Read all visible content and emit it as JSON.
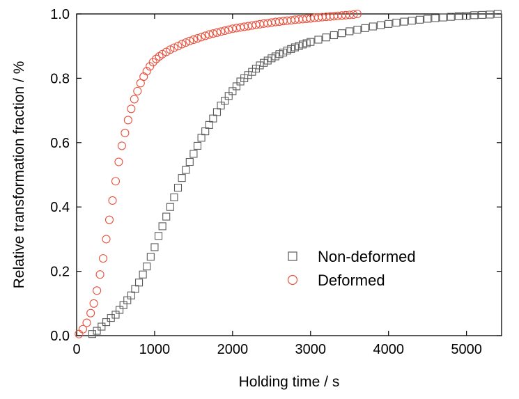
{
  "chart_data": {
    "type": "scatter",
    "xlabel": "Holding time / s",
    "ylabel": "Relative transformation fraction / %",
    "xlim": [
      0,
      5450
    ],
    "ylim": [
      0,
      1.0
    ],
    "xticks": [
      0,
      1000,
      2000,
      3000,
      4000,
      5000
    ],
    "yticks": [
      0.0,
      0.2,
      0.4,
      0.6,
      0.8,
      1.0
    ],
    "xtick_labels": [
      "0",
      "1000",
      "2000",
      "3000",
      "4000",
      "5000"
    ],
    "ytick_labels": [
      "0.0",
      "0.2",
      "0.4",
      "0.6",
      "0.8",
      "1.0"
    ],
    "grid": false,
    "legend_position": "center-right",
    "series": [
      {
        "name": "Non-deformed",
        "marker": "square",
        "color": "#5a5a5a",
        "x": [
          200,
          260,
          320,
          380,
          440,
          500,
          550,
          600,
          650,
          700,
          750,
          800,
          850,
          900,
          950,
          1000,
          1050,
          1100,
          1150,
          1200,
          1250,
          1300,
          1350,
          1400,
          1450,
          1500,
          1550,
          1600,
          1650,
          1700,
          1750,
          1800,
          1850,
          1900,
          1950,
          2000,
          2050,
          2100,
          2150,
          2200,
          2250,
          2300,
          2350,
          2400,
          2450,
          2500,
          2550,
          2600,
          2650,
          2700,
          2750,
          2800,
          2850,
          2900,
          2950,
          3000,
          3100,
          3200,
          3300,
          3400,
          3500,
          3600,
          3700,
          3800,
          3900,
          4000,
          4100,
          4200,
          4300,
          4400,
          4500,
          4600,
          4700,
          4800,
          4900,
          5000,
          5100,
          5200,
          5300,
          5400
        ],
        "y": [
          0.005,
          0.015,
          0.028,
          0.042,
          0.055,
          0.065,
          0.08,
          0.095,
          0.11,
          0.125,
          0.145,
          0.165,
          0.19,
          0.215,
          0.245,
          0.275,
          0.31,
          0.34,
          0.37,
          0.4,
          0.43,
          0.46,
          0.49,
          0.515,
          0.54,
          0.565,
          0.59,
          0.615,
          0.635,
          0.655,
          0.675,
          0.695,
          0.715,
          0.73,
          0.745,
          0.76,
          0.775,
          0.79,
          0.8,
          0.81,
          0.82,
          0.83,
          0.84,
          0.848,
          0.855,
          0.862,
          0.868,
          0.875,
          0.88,
          0.886,
          0.891,
          0.896,
          0.9,
          0.905,
          0.909,
          0.913,
          0.92,
          0.927,
          0.934,
          0.94,
          0.946,
          0.951,
          0.956,
          0.961,
          0.965,
          0.969,
          0.973,
          0.976,
          0.979,
          0.982,
          0.985,
          0.987,
          0.989,
          0.991,
          0.993,
          0.994,
          0.996,
          0.997,
          0.998,
          1.0
        ]
      },
      {
        "name": "Deformed",
        "marker": "circle",
        "color": "#e8503c",
        "x": [
          30,
          80,
          130,
          180,
          220,
          260,
          300,
          340,
          380,
          420,
          460,
          500,
          540,
          580,
          620,
          660,
          700,
          740,
          780,
          820,
          860,
          900,
          940,
          980,
          1020,
          1060,
          1100,
          1150,
          1200,
          1250,
          1300,
          1350,
          1400,
          1450,
          1500,
          1550,
          1600,
          1650,
          1700,
          1750,
          1800,
          1850,
          1900,
          1950,
          2000,
          2050,
          2100,
          2150,
          2200,
          2250,
          2300,
          2350,
          2400,
          2450,
          2500,
          2550,
          2600,
          2650,
          2700,
          2750,
          2800,
          2850,
          2900,
          2950,
          3000,
          3050,
          3100,
          3150,
          3200,
          3250,
          3300,
          3350,
          3400,
          3450,
          3500,
          3550,
          3600
        ],
        "y": [
          0.005,
          0.02,
          0.04,
          0.07,
          0.1,
          0.14,
          0.19,
          0.24,
          0.3,
          0.36,
          0.42,
          0.48,
          0.54,
          0.59,
          0.63,
          0.67,
          0.705,
          0.735,
          0.76,
          0.785,
          0.805,
          0.822,
          0.837,
          0.85,
          0.86,
          0.868,
          0.875,
          0.882,
          0.889,
          0.895,
          0.9,
          0.906,
          0.911,
          0.916,
          0.92,
          0.924,
          0.928,
          0.932,
          0.936,
          0.939,
          0.942,
          0.945,
          0.948,
          0.951,
          0.954,
          0.956,
          0.958,
          0.96,
          0.962,
          0.964,
          0.966,
          0.968,
          0.97,
          0.971,
          0.973,
          0.975,
          0.976,
          0.978,
          0.979,
          0.98,
          0.982,
          0.983,
          0.984,
          0.985,
          0.986,
          0.988,
          0.989,
          0.99,
          0.991,
          0.992,
          0.993,
          0.994,
          0.995,
          0.996,
          0.997,
          0.998,
          1.0
        ]
      }
    ]
  }
}
